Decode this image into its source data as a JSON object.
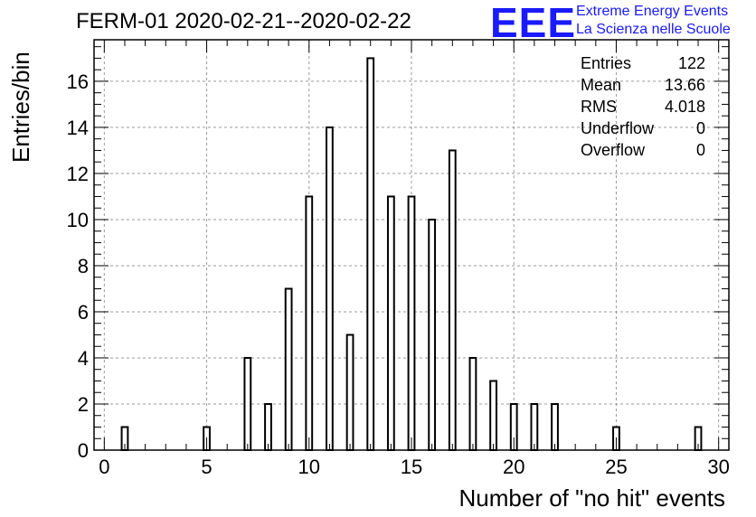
{
  "title": "FERM-01 2020-02-21--2020-02-22",
  "logo": {
    "mark": "EEE",
    "line1": "Extreme Energy Events",
    "line2": "La Scienza nelle Scuole",
    "color": "#1a1aff"
  },
  "stats": {
    "entries_label": "Entries",
    "entries": "122",
    "mean_label": "Mean",
    "mean": "13.66",
    "rms_label": "RMS",
    "rms": "4.018",
    "underflow_label": "Underflow",
    "underflow": "0",
    "overflow_label": "Overflow",
    "overflow": "0"
  },
  "chart_data": {
    "type": "bar",
    "title": "FERM-01 2020-02-21--2020-02-22",
    "xlabel": "Number of \"no hit\" events",
    "ylabel": "Entries/bin",
    "xlim": [
      -0.5,
      30.5
    ],
    "ylim": [
      0,
      17.8
    ],
    "xticks": [
      0,
      5,
      10,
      15,
      20,
      25,
      30
    ],
    "yticks": [
      0,
      2,
      4,
      6,
      8,
      10,
      12,
      14,
      16
    ],
    "bar_width": 0.3,
    "grid": true,
    "x": [
      1,
      5,
      7,
      8,
      9,
      10,
      11,
      12,
      13,
      14,
      15,
      16,
      17,
      18,
      19,
      20,
      21,
      22,
      25,
      29
    ],
    "values": [
      1,
      1,
      4,
      2,
      7,
      11,
      14,
      5,
      17,
      11,
      11,
      10,
      13,
      4,
      3,
      2,
      2,
      2,
      1,
      1
    ]
  }
}
